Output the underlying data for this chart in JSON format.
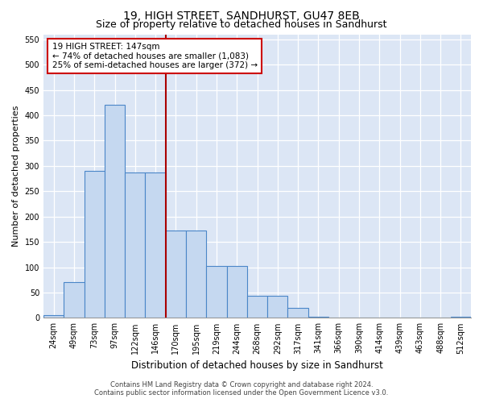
{
  "title": "19, HIGH STREET, SANDHURST, GU47 8EB",
  "subtitle": "Size of property relative to detached houses in Sandhurst",
  "xlabel": "Distribution of detached houses by size in Sandhurst",
  "ylabel": "Number of detached properties",
  "categories": [
    "24sqm",
    "49sqm",
    "73sqm",
    "97sqm",
    "122sqm",
    "146sqm",
    "170sqm",
    "195sqm",
    "219sqm",
    "244sqm",
    "268sqm",
    "292sqm",
    "317sqm",
    "341sqm",
    "366sqm",
    "390sqm",
    "414sqm",
    "439sqm",
    "463sqm",
    "488sqm",
    "512sqm"
  ],
  "values": [
    5,
    70,
    290,
    420,
    287,
    287,
    172,
    172,
    103,
    103,
    43,
    43,
    20,
    3,
    0,
    0,
    0,
    0,
    0,
    0,
    2
  ],
  "bar_color": "#c5d8f0",
  "bar_edge_color": "#4a86c8",
  "annotation_text": "19 HIGH STREET: 147sqm\n← 74% of detached houses are smaller (1,083)\n25% of semi-detached houses are larger (372) →",
  "vline_x_index": 5,
  "vline_color": "#aa0000",
  "annotation_box_facecolor": "#ffffff",
  "annotation_box_edgecolor": "#cc0000",
  "footer1": "Contains HM Land Registry data © Crown copyright and database right 2024.",
  "footer2": "Contains public sector information licensed under the Open Government Licence v3.0.",
  "ylim": [
    0,
    560
  ],
  "yticks": [
    0,
    50,
    100,
    150,
    200,
    250,
    300,
    350,
    400,
    450,
    500,
    550
  ],
  "plot_bg_color": "#dce6f5",
  "grid_color": "#ffffff",
  "title_fontsize": 10,
  "subtitle_fontsize": 9,
  "tick_fontsize": 7,
  "ylabel_fontsize": 8,
  "xlabel_fontsize": 8.5,
  "footer_fontsize": 6
}
